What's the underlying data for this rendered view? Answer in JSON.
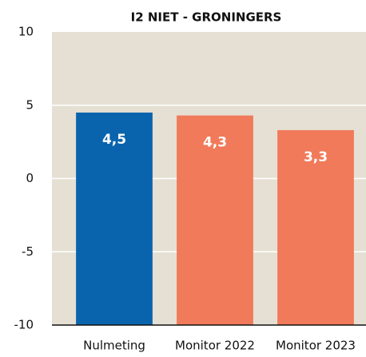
{
  "chart_data": {
    "type": "bar",
    "title": "I2 NIET - GRONINGERS",
    "categories": [
      "Nulmeting",
      "Monitor 2022",
      "Monitor 2023"
    ],
    "values": [
      4.5,
      4.3,
      3.3
    ],
    "value_labels": [
      "4,5",
      "4,3",
      "3,3"
    ],
    "colors": [
      "#0a64ad",
      "#f07a5a",
      "#f07a5a"
    ],
    "ylim": [
      -10,
      10
    ],
    "yticks": [
      -10,
      -5,
      0,
      5,
      10
    ],
    "grid": true
  }
}
